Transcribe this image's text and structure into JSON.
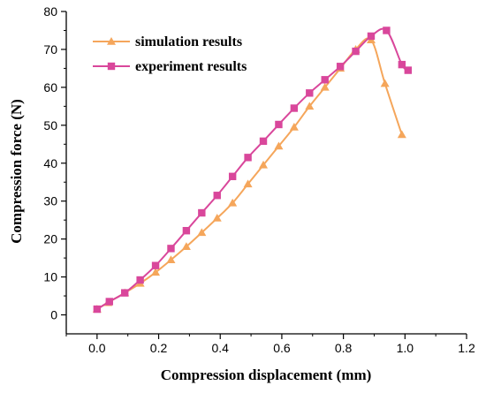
{
  "chart_data": {
    "type": "line",
    "title": "",
    "xlabel": "Compression displacement (mm)",
    "ylabel": "Compression force (N)",
    "xlim": [
      -0.1,
      1.2
    ],
    "ylim": [
      -5,
      80
    ],
    "x_ticks": [
      "0.0",
      "0.2",
      "0.4",
      "0.6",
      "0.8",
      "1.0",
      "1.2"
    ],
    "y_ticks": [
      "0",
      "10",
      "20",
      "30",
      "40",
      "50",
      "60",
      "70",
      "80"
    ],
    "grid": false,
    "legend_position": "top-left",
    "series": [
      {
        "name": "simulation results",
        "color": "#f5a65b",
        "marker": "triangle",
        "x": [
          0.0,
          0.035,
          0.09,
          0.14,
          0.19,
          0.24,
          0.29,
          0.34,
          0.39,
          0.44,
          0.49,
          0.54,
          0.59,
          0.64,
          0.69,
          0.74,
          0.79,
          0.84,
          0.89,
          0.935,
          0.99
        ],
        "y": [
          1.5,
          3.2,
          5.8,
          8.3,
          11.2,
          14.5,
          18.0,
          21.7,
          25.5,
          29.5,
          34.5,
          39.5,
          44.5,
          49.5,
          55.0,
          60.0,
          65.0,
          70.0,
          72.5,
          61.0,
          47.5
        ]
      },
      {
        "name": "experiment results",
        "color": "#d9479b",
        "marker": "square",
        "x": [
          0.0,
          0.04,
          0.09,
          0.14,
          0.19,
          0.24,
          0.29,
          0.34,
          0.39,
          0.44,
          0.49,
          0.54,
          0.59,
          0.64,
          0.69,
          0.74,
          0.79,
          0.84,
          0.89,
          0.94,
          0.99,
          1.01
        ],
        "y": [
          1.5,
          3.5,
          5.8,
          9.2,
          13.0,
          17.5,
          22.2,
          26.9,
          31.5,
          36.5,
          41.5,
          45.8,
          50.2,
          54.5,
          58.5,
          62.0,
          65.5,
          69.5,
          73.5,
          75.0,
          66.0,
          64.5
        ]
      }
    ]
  }
}
